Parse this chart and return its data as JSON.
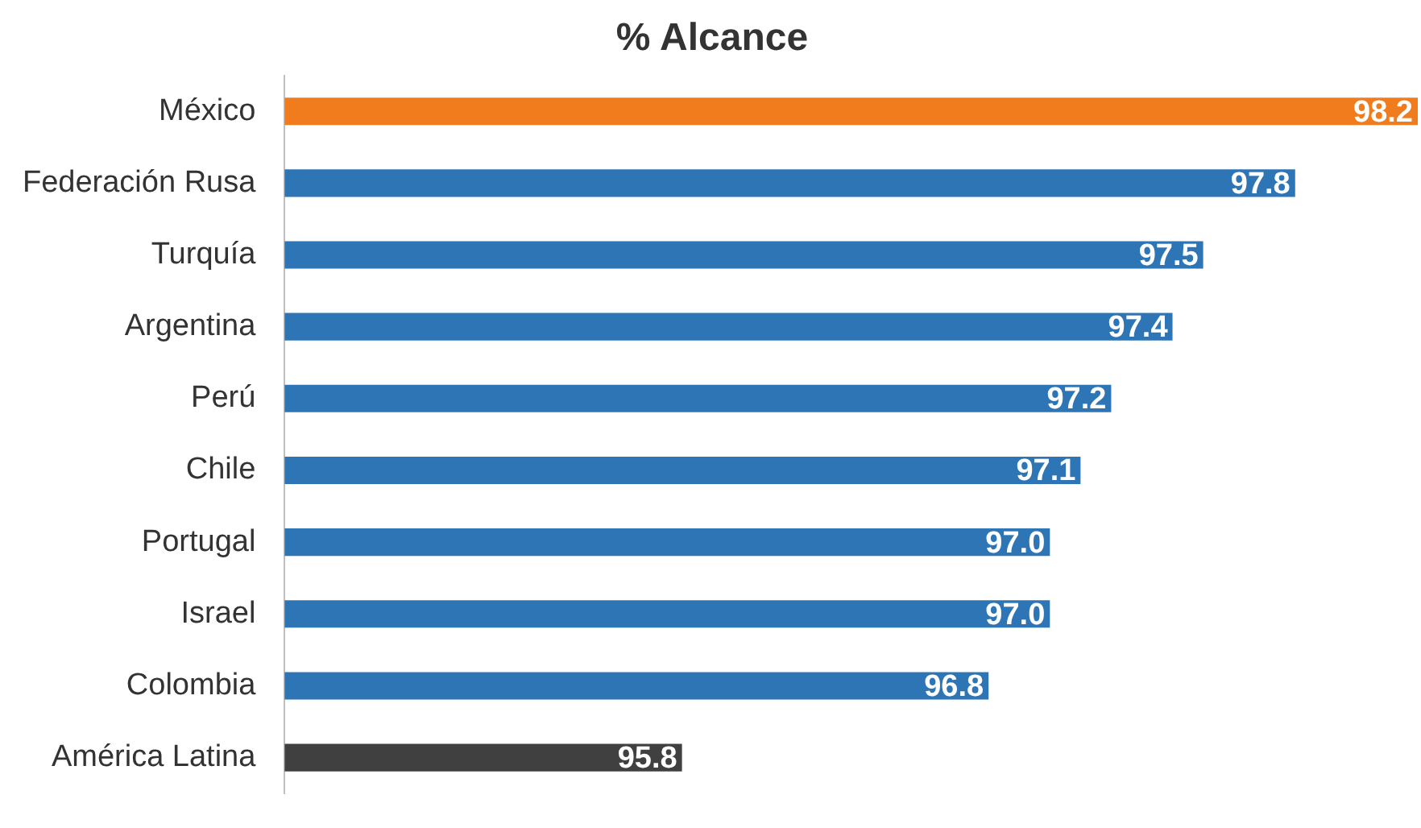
{
  "chart_data": {
    "type": "bar",
    "orientation": "horizontal",
    "title": "% Alcance",
    "categories": [
      "México",
      "Federación Rusa",
      "Turquía",
      "Argentina",
      "Perú",
      "Chile",
      "Portugal",
      "Israel",
      "Colombia",
      "América Latina"
    ],
    "values": [
      98.2,
      97.8,
      97.5,
      97.4,
      97.2,
      97.1,
      97.0,
      97.0,
      96.8,
      95.8
    ],
    "colors": [
      "#f07c1e",
      "#2e75b6",
      "#2e75b6",
      "#2e75b6",
      "#2e75b6",
      "#2e75b6",
      "#2e75b6",
      "#2e75b6",
      "#2e75b6",
      "#404040"
    ],
    "value_labels": [
      "98.2",
      "97.8",
      "97.5",
      "97.4",
      "97.2",
      "97.1",
      "97.0",
      "97.0",
      "96.8",
      "95.8"
    ],
    "tick_labels": "y",
    "legend": false
  }
}
